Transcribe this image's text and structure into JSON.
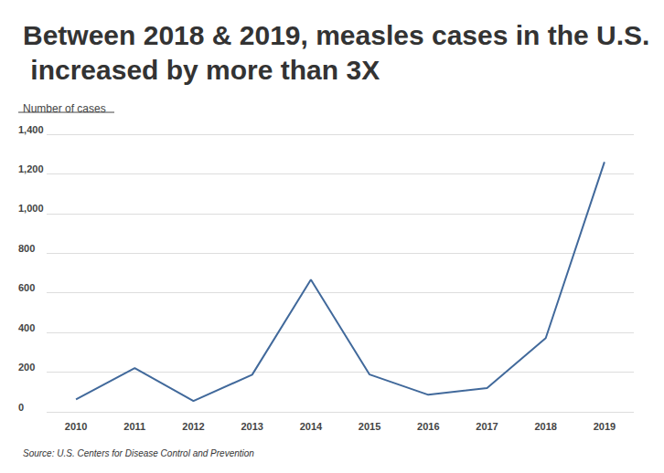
{
  "chart_data": {
    "type": "line",
    "title": "Between 2018 & 2019, measles cases in the U.S. increased by more than 3X",
    "ylabel": "Number of cases",
    "source": "Source: U.S. Centers for Disease Control and Prevention",
    "categories": [
      "2010",
      "2011",
      "2012",
      "2013",
      "2014",
      "2015",
      "2016",
      "2017",
      "2018",
      "2019"
    ],
    "values": [
      63,
      220,
      55,
      187,
      667,
      188,
      86,
      120,
      372,
      1260
    ],
    "color": "#41699b",
    "ylim": [
      0,
      1400
    ],
    "yticks": [
      0,
      200,
      400,
      600,
      800,
      {
        "value": 1000,
        "label": "1,000"
      },
      {
        "value": 1200,
        "label": "1,200"
      },
      {
        "value": 1400,
        "label": "1,400"
      }
    ],
    "grid": true
  }
}
